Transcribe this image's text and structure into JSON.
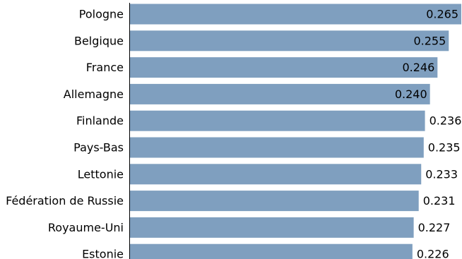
{
  "chart_data": {
    "type": "bar",
    "orientation": "horizontal",
    "categories": [
      "Pologne",
      "Belgique",
      "France",
      "Allemagne",
      "Finlande",
      "Pays-Bas",
      "Lettonie",
      "Fédération de Russie",
      "Royaume-Uni",
      "Estonie"
    ],
    "values": [
      0.265,
      0.255,
      0.246,
      0.24,
      0.236,
      0.235,
      0.233,
      0.231,
      0.227,
      0.226
    ],
    "value_labels": [
      "0.265",
      "0.255",
      "0.246",
      "0.240",
      "0.236",
      "0.235",
      "0.233",
      "0.231",
      "0.227",
      "0.226"
    ],
    "xlim": [
      0,
      0.265
    ],
    "grid": false,
    "legend": "none",
    "colors": {
      "bar": "#7f9fbf",
      "axis": "#000000",
      "text": "#000000"
    }
  }
}
